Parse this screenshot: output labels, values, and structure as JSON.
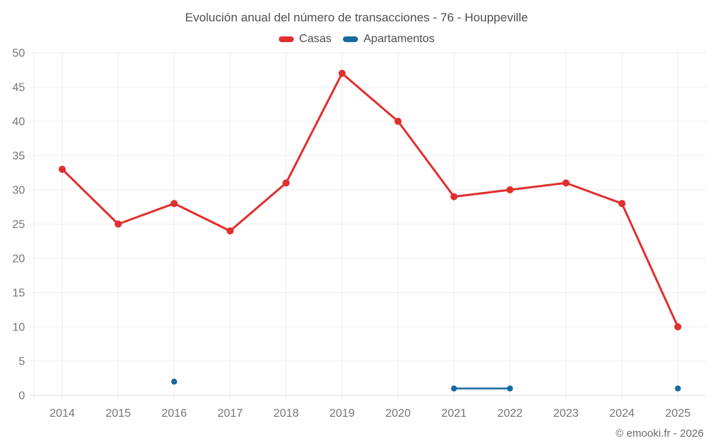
{
  "chart_data": {
    "type": "line",
    "title": "Evolución anual del número de transacciones - 76 - Houppeville",
    "categories": [
      "2014",
      "2015",
      "2016",
      "2017",
      "2018",
      "2019",
      "2020",
      "2021",
      "2022",
      "2023",
      "2024",
      "2025"
    ],
    "series": [
      {
        "name": "Casas",
        "color": "#e0302e",
        "values": [
          33,
          25,
          28,
          24,
          31,
          47,
          40,
          29,
          30,
          31,
          28,
          10
        ]
      },
      {
        "name": "Apartamentos",
        "color": "#17699e",
        "values": [
          null,
          null,
          2,
          null,
          null,
          null,
          null,
          1,
          1,
          null,
          null,
          1
        ]
      }
    ],
    "ylim": [
      0,
      50
    ],
    "yticks": [
      0,
      5,
      10,
      15,
      20,
      25,
      30,
      35,
      40,
      45,
      50
    ],
    "grid": true,
    "legend_position": "top",
    "attribution": "© emooki.fr - 2026",
    "colors": {
      "grid": "#ececec",
      "axis": "#e0e0e0",
      "tick_label": "#757575",
      "title": "#4f4f4f"
    }
  }
}
